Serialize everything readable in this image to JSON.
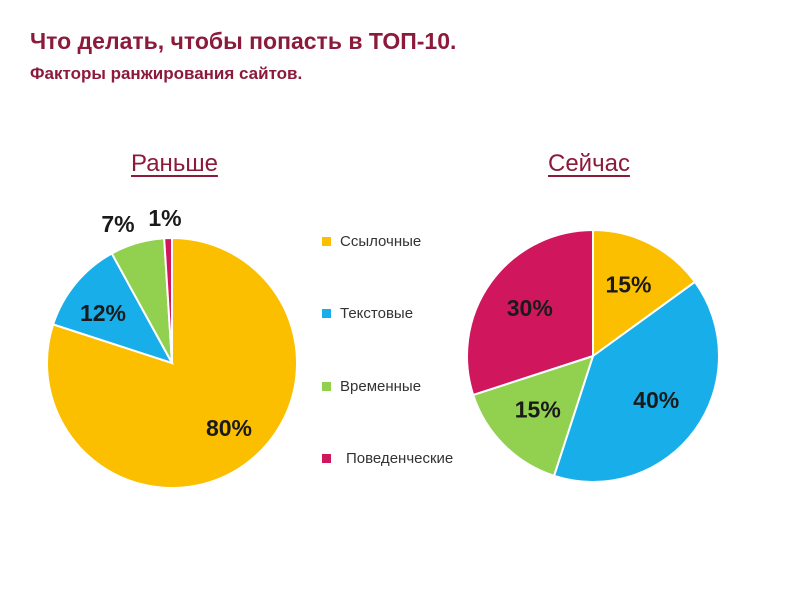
{
  "header": {
    "title": "Что делать, чтобы попасть в ТОП-10.",
    "subtitle": "Факторы ранжирования сайтов."
  },
  "colors": {
    "title": "#8b1a3b",
    "links": "#fbbf00",
    "text": "#17aee9",
    "time": "#92d050",
    "behavior": "#d0175e"
  },
  "legend": [
    {
      "label": "Ссылочные",
      "color": "#fbbf00"
    },
    {
      "label": "Текстовые",
      "color": "#17aee9"
    },
    {
      "label": "Временные",
      "color": "#92d050"
    },
    {
      "label": "Поведенческие",
      "color": "#d0175e"
    }
  ],
  "chart_data": [
    {
      "type": "pie",
      "title": "Раньше",
      "categories": [
        "Ссылочные",
        "Текстовые",
        "Временные",
        "Поведенческие"
      ],
      "values": [
        80,
        12,
        7,
        1
      ],
      "labels": [
        "80%",
        "12%",
        "7%",
        "1%"
      ],
      "colors": [
        "#fbbf00",
        "#17aee9",
        "#92d050",
        "#d0175e"
      ]
    },
    {
      "type": "pie",
      "title": "Сейчас",
      "categories": [
        "Ссылочные",
        "Текстовые",
        "Временные",
        "Поведенческие"
      ],
      "values": [
        15,
        40,
        15,
        30
      ],
      "labels": [
        "15%",
        "40%",
        "15%",
        "30%"
      ],
      "colors": [
        "#fbbf00",
        "#17aee9",
        "#92d050",
        "#d0175e"
      ]
    }
  ]
}
